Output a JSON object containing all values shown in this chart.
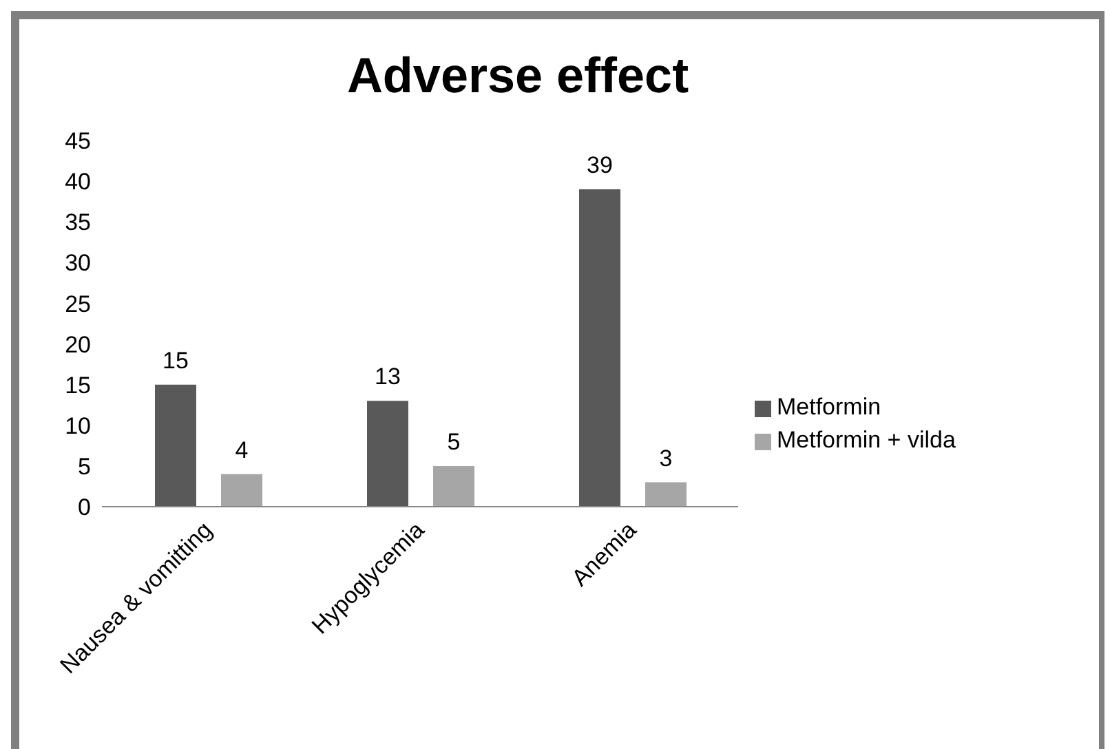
{
  "chart_data": {
    "type": "bar",
    "title": "Adverse effect",
    "categories": [
      "Nausea & vomitting",
      "Hypoglycemia",
      "Anemia"
    ],
    "series": [
      {
        "name": "Metformin",
        "color": "#595959",
        "values": [
          15,
          13,
          39
        ]
      },
      {
        "name": "Metformin + vilda",
        "color": "#a6a6a6",
        "values": [
          4,
          5,
          3
        ]
      }
    ],
    "ylim": [
      0,
      45
    ],
    "yticks": [
      0,
      5,
      10,
      15,
      20,
      25,
      30,
      35,
      40,
      45
    ],
    "grid": false,
    "legend": "right",
    "data_labels": true
  }
}
